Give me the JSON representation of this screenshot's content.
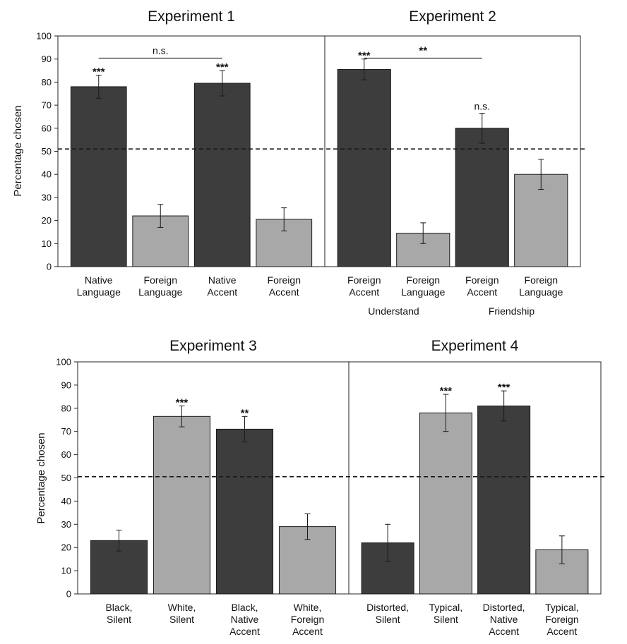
{
  "colors": {
    "dark": "#3d3d3d",
    "light": "#a8a8a8",
    "axis": "#222222"
  },
  "chart_data": [
    {
      "type": "bar",
      "ylabel": "Percentage chosen",
      "ylim": [
        0,
        100
      ],
      "yticks": [
        "0",
        "10",
        "20",
        "30",
        "40",
        "50",
        "60",
        "70",
        "80",
        "90",
        "100"
      ],
      "chance_line": 51,
      "panels": [
        {
          "title": "Experiment 1",
          "bars": [
            {
              "label": [
                "Native",
                "Language"
              ],
              "value": 78,
              "err": 5,
              "color": "dark",
              "sig": "***"
            },
            {
              "label": [
                "Foreign",
                "Language"
              ],
              "value": 22,
              "err": 5,
              "color": "light",
              "sig": ""
            },
            {
              "label": [
                "Native",
                "Accent"
              ],
              "value": 79.5,
              "err": 5.5,
              "color": "dark",
              "sig": "***"
            },
            {
              "label": [
                "Foreign",
                "Accent"
              ],
              "value": 20.5,
              "err": 5,
              "color": "light",
              "sig": ""
            }
          ],
          "comparisons": [
            {
              "from": 0,
              "to": 2,
              "text": "n.s.",
              "y": 91
            }
          ],
          "groups": []
        },
        {
          "title": "Experiment 2",
          "bars": [
            {
              "label": [
                "Foreign",
                "Accent"
              ],
              "value": 85.5,
              "err": 4.5,
              "color": "dark",
              "sig": "***"
            },
            {
              "label": [
                "Foreign",
                "Language"
              ],
              "value": 14.5,
              "err": 4.5,
              "color": "light",
              "sig": ""
            },
            {
              "label": [
                "Foreign",
                "Accent"
              ],
              "value": 60,
              "err": 6.5,
              "color": "dark",
              "sig": "n.s."
            },
            {
              "label": [
                "Foreign",
                "Language"
              ],
              "value": 40,
              "err": 6.5,
              "color": "light",
              "sig": ""
            }
          ],
          "comparisons": [
            {
              "from": 0,
              "to": 2,
              "text": "**",
              "y": 91
            }
          ],
          "groups": [
            {
              "text": "Understand",
              "from": 0,
              "to": 1
            },
            {
              "text": "Friendship",
              "from": 2,
              "to": 3
            }
          ]
        }
      ]
    },
    {
      "type": "bar",
      "ylabel": "Percentage chosen",
      "ylim": [
        0,
        100
      ],
      "yticks": [
        "0",
        "10",
        "20",
        "30",
        "40",
        "50",
        "60",
        "70",
        "80",
        "90",
        "100"
      ],
      "chance_line": 50.5,
      "panels": [
        {
          "title": "Experiment 3",
          "bars": [
            {
              "label": [
                "Black,",
                "Silent"
              ],
              "value": 23,
              "err": 4.5,
              "color": "dark",
              "sig": ""
            },
            {
              "label": [
                "White,",
                "Silent"
              ],
              "value": 76.5,
              "err": 4.5,
              "color": "light",
              "sig": "***"
            },
            {
              "label": [
                "Black,",
                "Native",
                "Accent"
              ],
              "value": 71,
              "err": 5.5,
              "color": "dark",
              "sig": "**"
            },
            {
              "label": [
                "White,",
                "Foreign",
                "Accent"
              ],
              "value": 29,
              "err": 5.5,
              "color": "light",
              "sig": ""
            }
          ],
          "comparisons": [],
          "groups": []
        },
        {
          "title": "Experiment 4",
          "bars": [
            {
              "label": [
                "Distorted,",
                "Silent"
              ],
              "value": 22,
              "err": 8,
              "color": "dark",
              "sig": ""
            },
            {
              "label": [
                "Typical,",
                "Silent"
              ],
              "value": 78,
              "err": 8,
              "color": "light",
              "sig": "***"
            },
            {
              "label": [
                "Distorted,",
                "Native",
                "Accent"
              ],
              "value": 81,
              "err": 6.5,
              "color": "dark",
              "sig": "***"
            },
            {
              "label": [
                "Typical,",
                "Foreign",
                "Accent"
              ],
              "value": 19,
              "err": 6,
              "color": "light",
              "sig": ""
            }
          ],
          "comparisons": [],
          "groups": []
        }
      ]
    }
  ]
}
